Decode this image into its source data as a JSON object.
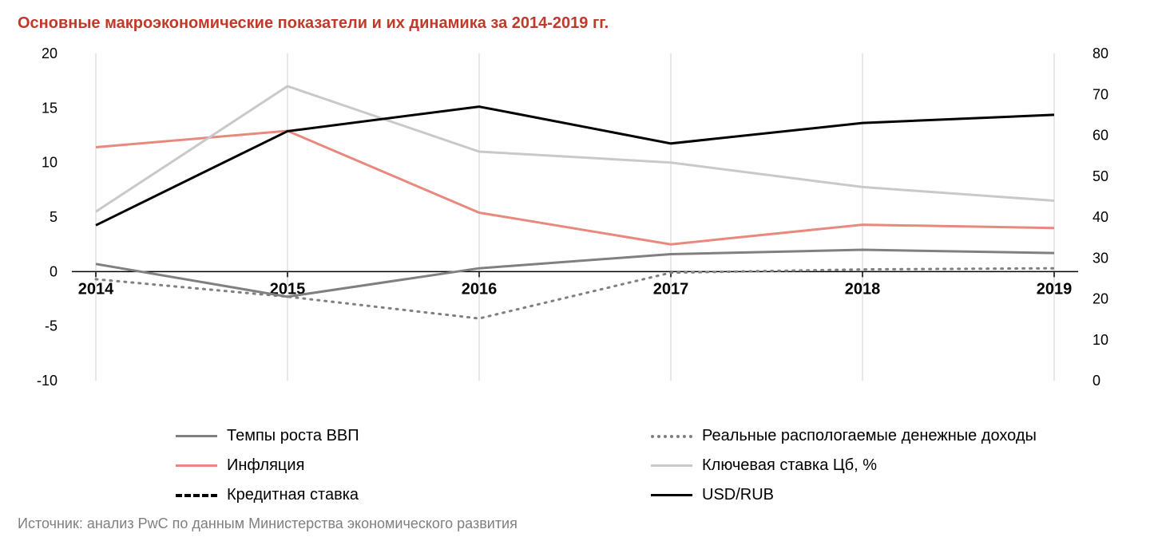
{
  "title": "Основные макроэкономические показатели и их динамика за 2014-2019 гг.",
  "source": "Источник: анализ PwC по данным Министерства экономического развития",
  "chart": {
    "type": "line-dual-axis",
    "background_color": "#ffffff",
    "title_color": "#c0392b",
    "title_fontsize": 20,
    "axis_fontsize": 18,
    "xcat_fontsize": 20,
    "axis_color": "#000000",
    "grid_color": "#d0d0d0",
    "x": {
      "categories": [
        "2014",
        "2015",
        "2016",
        "2017",
        "2018",
        "2019"
      ]
    },
    "y_left": {
      "min": -10,
      "max": 20,
      "step": 5,
      "ticks": [
        -10,
        -5,
        0,
        5,
        10,
        15,
        20
      ]
    },
    "y_right": {
      "min": 0,
      "max": 80,
      "step": 10,
      "ticks": [
        0,
        10,
        20,
        30,
        40,
        50,
        60,
        70,
        80
      ]
    },
    "series": [
      {
        "key": "gdp",
        "label": "Темпы роста ВВП",
        "axis": "left",
        "color": "#808080",
        "width": 3,
        "dash": "",
        "values": [
          0.7,
          -2.3,
          0.3,
          1.6,
          2.0,
          1.7
        ]
      },
      {
        "key": "income",
        "label": "Реальные распологаемые денежные доходы",
        "axis": "left",
        "color": "#808080",
        "width": 3,
        "dash": "2 7",
        "values": [
          -0.7,
          -2.3,
          -4.3,
          -0.1,
          0.2,
          0.3
        ]
      },
      {
        "key": "inflation",
        "label": "Инфляция",
        "axis": "left",
        "color": "#e9897e",
        "width": 3,
        "dash": "",
        "values": [
          11.4,
          12.9,
          5.4,
          2.5,
          4.3,
          4.0
        ]
      },
      {
        "key": "key_rate",
        "label": "Ключевая ставка Цб, %",
        "axis": "left",
        "color": "#c9c9c9",
        "width": 3,
        "dash": "",
        "values": [
          5.5,
          17.0,
          11.0,
          10.0,
          7.75,
          6.5
        ]
      },
      {
        "key": "loan_rate",
        "label": "Кредитная ставка",
        "axis": "left",
        "color": "#000000",
        "width": 4,
        "dash": "10 10",
        "values": [
          null,
          null,
          null,
          null,
          null,
          null
        ]
      },
      {
        "key": "usdrub",
        "label": "USD/RUB",
        "axis": "right",
        "color": "#000000",
        "width": 3,
        "dash": "",
        "values": [
          38,
          61,
          67,
          58,
          63,
          65
        ]
      }
    ],
    "legend_order": [
      "gdp",
      "income",
      "inflation",
      "key_rate",
      "loan_rate",
      "usdrub"
    ]
  }
}
